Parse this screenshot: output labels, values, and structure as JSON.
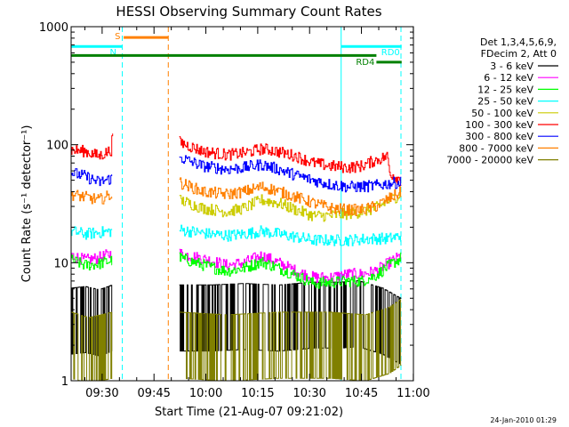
{
  "chart_data": {
    "type": "line",
    "title": "HESSI Observing Summary Count Rates",
    "xlabel": "Start Time (21-Aug-07 09:21:02)",
    "ylabel": "Count Rate (s⁻¹ detector⁻¹)",
    "x_unit": "minutes after 09:21:02",
    "xlim": [
      0,
      99
    ],
    "ylim": [
      1,
      1000
    ],
    "yscale": "log",
    "x_ticks": [
      {
        "label": "09:30",
        "x": 8.97
      },
      {
        "label": "09:45",
        "x": 23.97
      },
      {
        "label": "10:00",
        "x": 38.97
      },
      {
        "label": "10:15",
        "x": 53.97
      },
      {
        "label": "10:30",
        "x": 68.97
      },
      {
        "label": "10:45",
        "x": 83.97
      },
      {
        "label": "11:00",
        "x": 98.97
      }
    ],
    "y_ticks": [
      {
        "label": "1",
        "y": 1
      },
      {
        "label": "10",
        "y": 10
      },
      {
        "label": "100",
        "y": 100
      },
      {
        "label": "1000",
        "y": 1000
      }
    ],
    "legend": {
      "position": "right",
      "header": [
        "Det 1,3,4,5,6,9,",
        "FDecim 2, Att 0"
      ]
    },
    "series": [
      {
        "name": "3 - 6 keV",
        "color": "#000000",
        "segments": [
          {
            "x": [
              0,
              4,
              8,
              11.8
            ],
            "y": [
              3.2,
              3.3,
              3.1,
              3.4
            ]
          },
          {
            "x": [
              31.3,
              40,
              50,
              60,
              70,
              78,
              83,
              90,
              95.5
            ],
            "y": [
              3.4,
              3.4,
              3.5,
              3.4,
              3.6,
              3.6,
              3.7,
              3.2,
              2.6
            ]
          }
        ]
      },
      {
        "name": "6 - 12 keV",
        "color": "#ff00ff",
        "segments": [
          {
            "x": [
              0,
              4,
              8,
              11.8
            ],
            "y": [
              11.5,
              10.5,
              11,
              12
            ]
          },
          {
            "x": [
              31.3,
              40,
              45,
              50,
              55,
              60,
              65,
              70,
              75,
              80,
              84,
              88,
              92,
              95.5
            ],
            "y": [
              12,
              10.5,
              9.5,
              10,
              11.5,
              10,
              8.5,
              7.5,
              7.5,
              8,
              8,
              8.5,
              10,
              11.5
            ]
          }
        ]
      },
      {
        "name": "12 - 25 keV",
        "color": "#00ff00",
        "segments": [
          {
            "x": [
              0,
              4,
              8,
              11.8
            ],
            "y": [
              10.5,
              9.5,
              9.8,
              10.5
            ]
          },
          {
            "x": [
              31.3,
              40,
              45,
              50,
              55,
              60,
              65,
              70,
              75,
              80,
              84,
              88,
              92,
              95.5
            ],
            "y": [
              11,
              9.2,
              8.5,
              9,
              10.2,
              9,
              7.8,
              6.7,
              6.8,
              7,
              7,
              7.8,
              9.5,
              11
            ]
          }
        ]
      },
      {
        "name": "25 - 50 keV",
        "color": "#00ffff",
        "segments": [
          {
            "x": [
              0,
              4,
              8,
              11.8
            ],
            "y": [
              18.5,
              17.5,
              18,
              18.5
            ]
          },
          {
            "x": [
              31.3,
              40,
              45,
              50,
              55,
              60,
              65,
              70,
              75,
              80,
              84,
              88,
              92,
              95.5
            ],
            "y": [
              19,
              17.5,
              17,
              17.5,
              18.5,
              17.5,
              16.5,
              15.5,
              15.5,
              15.5,
              15.8,
              16,
              16,
              17
            ]
          }
        ]
      },
      {
        "name": "50 - 100 keV",
        "color": "#cccc00",
        "segments": [
          {
            "x": [
              31.3,
              38,
              45,
              50,
              55,
              60,
              65,
              70,
              75,
              80,
              84,
              88,
              92,
              95.5
            ],
            "y": [
              34,
              29,
              27,
              29,
              34,
              32,
              28,
              25,
              25,
              26,
              27,
              29,
              34,
              38
            ]
          }
        ]
      },
      {
        "name": "100 - 300 keV",
        "color": "#ff0000",
        "segments": [
          {
            "x": [
              0,
              4,
              8,
              11.5,
              12
            ],
            "y": [
              90,
              88,
              80,
              90,
              130
            ]
          },
          {
            "x": [
              31.3,
              38,
              45,
              50,
              55,
              58,
              65,
              70,
              75,
              80,
              84,
              87,
              91.5,
              92,
              95.5
            ],
            "y": [
              105,
              88,
              82,
              85,
              92,
              90,
              80,
              70,
              66,
              64,
              66,
              72,
              80,
              58,
              50
            ]
          }
        ]
      },
      {
        "name": "300 - 800 keV",
        "color": "#0000ff",
        "segments": [
          {
            "x": [
              0,
              4,
              8,
              11.8
            ],
            "y": [
              58,
              54,
              48,
              52
            ]
          },
          {
            "x": [
              31.3,
              38,
              45,
              50,
              55,
              60,
              65,
              70,
              75,
              80,
              84,
              88,
              92,
              95.5
            ],
            "y": [
              78,
              66,
              62,
              64,
              68,
              62,
              55,
              50,
              46,
              44,
              44,
              45,
              47,
              48
            ]
          }
        ]
      },
      {
        "name": "800 - 7000 keV",
        "color": "#ff8000",
        "segments": [
          {
            "x": [
              0,
              4,
              8,
              11.8
            ],
            "y": [
              38,
              36,
              34,
              38
            ]
          },
          {
            "x": [
              31.3,
              38,
              45,
              50,
              55,
              58,
              65,
              70,
              75,
              80,
              84,
              88,
              92,
              95.5
            ],
            "y": [
              48,
              40,
              38,
              40,
              44,
              42,
              36,
              32,
              29,
              28,
              28,
              30,
              35,
              40
            ]
          }
        ]
      },
      {
        "name": "7000 - 20000 keV",
        "color": "#808000",
        "segments": [
          {
            "x": [
              0,
              5,
              11.8
            ],
            "y": [
              2.0,
              1.8,
              2.0
            ]
          },
          {
            "x": [
              31.3,
              45,
              60,
              75,
              85,
              92,
              95.5
            ],
            "y": [
              2.0,
              1.9,
              2.0,
              2.0,
              1.9,
              2.2,
              2.6
            ]
          }
        ]
      }
    ],
    "vertical_lines": [
      {
        "x": 14.8,
        "color": "#00ffff",
        "style": "dashed"
      },
      {
        "x": 28.1,
        "color": "#ff8000",
        "style": "dashed"
      },
      {
        "x": 78.1,
        "color": "#00ffff",
        "style": "solid"
      },
      {
        "x": 95.4,
        "color": "#00ffff",
        "style": "dashed"
      }
    ],
    "flag_bars": [
      {
        "label": "S",
        "color": "#ff8000",
        "x": [
          15.2,
          28.1
        ],
        "y": 810
      },
      {
        "label": "N",
        "color": "#00ffff",
        "x": [
          0,
          14.8
        ],
        "y": 680
      },
      {
        "label": "RD0",
        "color": "#00ffff",
        "x": [
          78.1,
          95.6
        ],
        "y": 680
      },
      {
        "label": "",
        "color": "#008000",
        "x": [
          0,
          88.3
        ],
        "y": 570
      },
      {
        "label": "RD4",
        "color": "#008000",
        "x": [
          88.3,
          95.6
        ],
        "y": 500
      }
    ],
    "footer_timestamp": "24-Jan-2010 01:29"
  }
}
